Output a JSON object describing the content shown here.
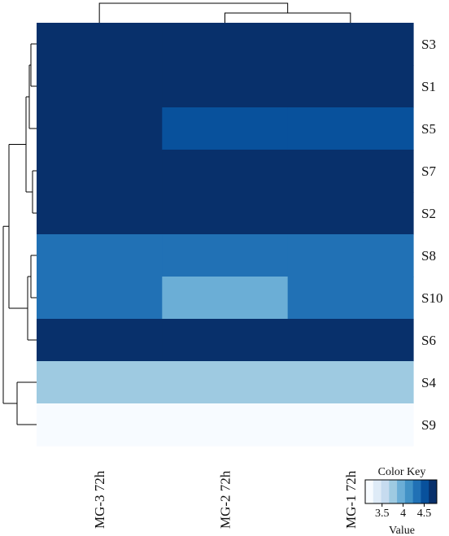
{
  "chart_data": {
    "type": "heatmap",
    "columns": [
      "MG-3 72h",
      "MG-2 72h",
      "MG-1 72h"
    ],
    "rows": [
      "S3",
      "S1",
      "S5",
      "S7",
      "S2",
      "S8",
      "S10",
      "S6",
      "S4",
      "S9"
    ],
    "values": [
      [
        4.72,
        4.72,
        4.72
      ],
      [
        4.72,
        4.72,
        4.72
      ],
      [
        4.72,
        4.55,
        4.55
      ],
      [
        4.72,
        4.72,
        4.72
      ],
      [
        4.72,
        4.72,
        4.72
      ],
      [
        4.25,
        4.25,
        4.25
      ],
      [
        4.25,
        3.95,
        4.25
      ],
      [
        4.62,
        4.62,
        4.62
      ],
      [
        3.75,
        3.75,
        3.75
      ],
      [
        3.15,
        3.15,
        3.15
      ]
    ],
    "palette": [
      "#f7fbff",
      "#deebf7",
      "#c6dbef",
      "#9ecae1",
      "#6baed6",
      "#4292c6",
      "#2171b5",
      "#08519c",
      "#08306b"
    ],
    "value_range": [
      3.1,
      4.8
    ],
    "color_key": {
      "title": "Color Key",
      "xlabel": "Value",
      "ticks": [
        "3.5",
        "4",
        "4.5"
      ],
      "tick_values": [
        3.5,
        4.0,
        4.5
      ]
    },
    "row_dendrogram": true,
    "col_dendrogram": true
  }
}
